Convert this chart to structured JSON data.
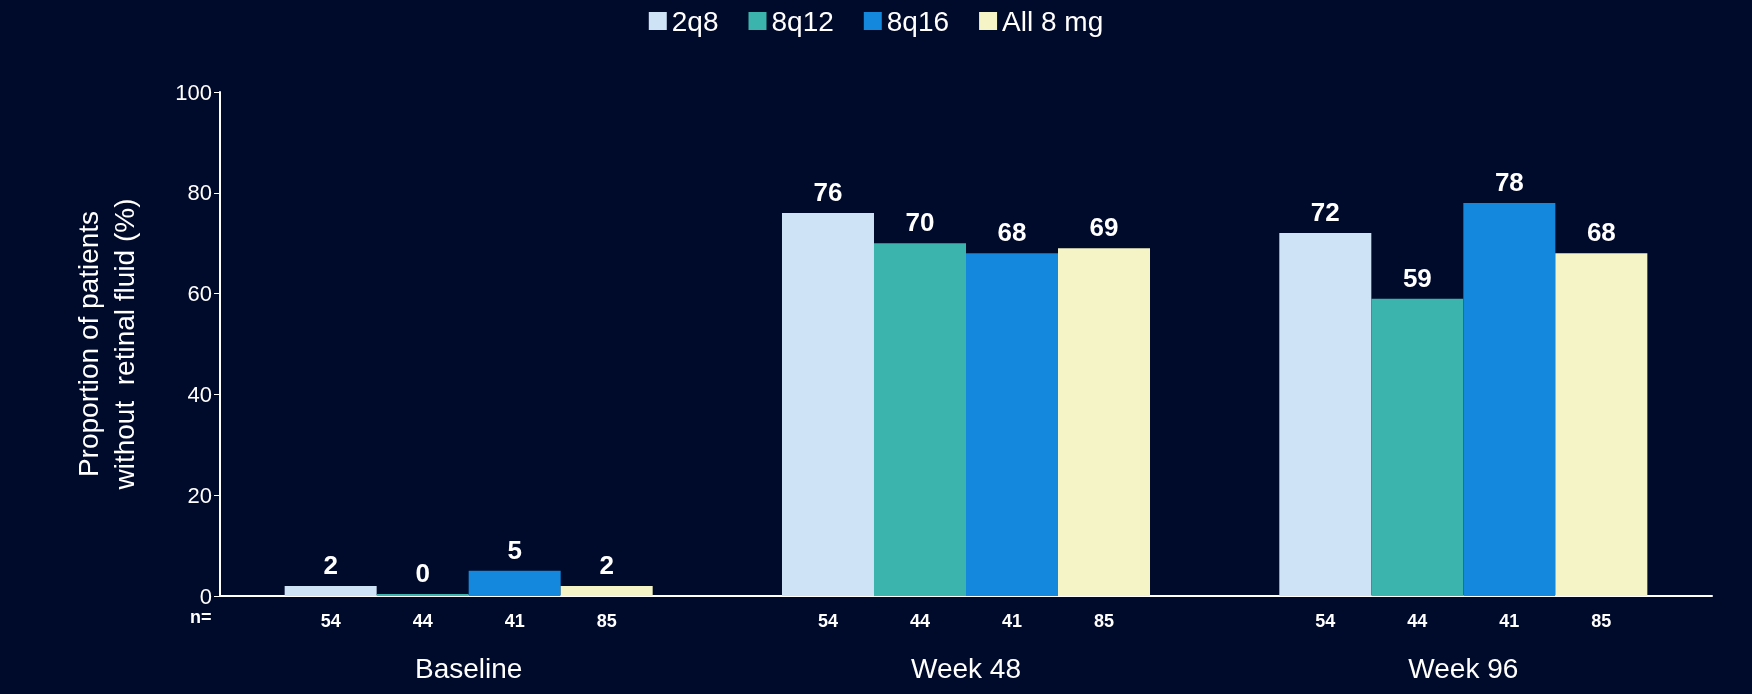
{
  "chart_data": {
    "type": "bar",
    "ylabel": "Proportion of patients\nwithout  retinal fluid (%)",
    "categories": [
      "Baseline",
      "Week 48",
      "Week 96"
    ],
    "series": [
      {
        "name": "2q8",
        "color": "#cfe3f7",
        "values": [
          2,
          76,
          72
        ]
      },
      {
        "name": "8q12",
        "color": "#3cb4ae",
        "values": [
          0,
          70,
          59
        ]
      },
      {
        "name": "8q16",
        "color": "#1488dc",
        "values": [
          5,
          68,
          78
        ]
      },
      {
        "name": "All 8 mg",
        "color": "#f4f4c6",
        "values": [
          2,
          69,
          68
        ]
      }
    ],
    "ylim": [
      0,
      100
    ],
    "yticks": [
      0,
      20,
      40,
      60,
      80,
      100
    ],
    "grid": false,
    "legend": "top",
    "data_labels": true,
    "annotations": [
      "n=",
      "54",
      "44",
      "41",
      "85",
      "54",
      "44",
      "41",
      "85",
      "54",
      "44",
      "41",
      "85"
    ]
  }
}
